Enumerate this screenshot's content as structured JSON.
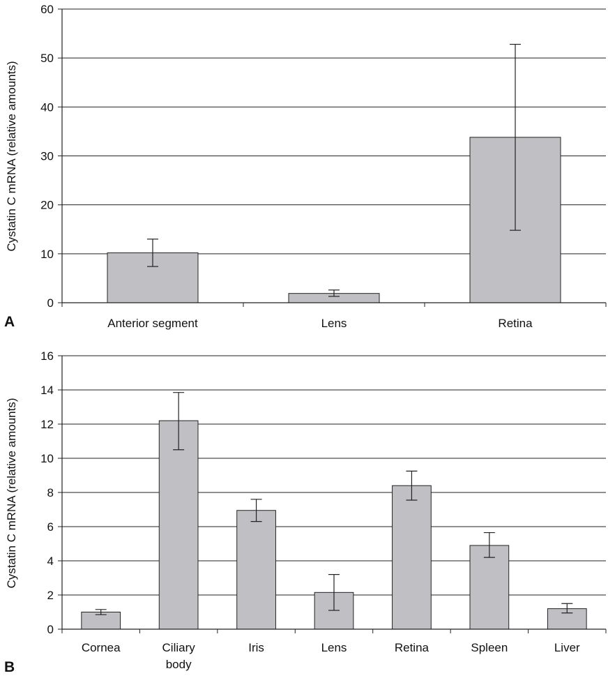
{
  "chart_data": [
    {
      "panel": "A",
      "type": "bar",
      "ylabel": "Cystatin C mRNA (relative amounts)",
      "ylim": [
        0,
        60
      ],
      "yticks": [
        0,
        10,
        20,
        30,
        40,
        50,
        60
      ],
      "grid": true,
      "categories": [
        "Anterior segment",
        "Lens",
        "Retina"
      ],
      "series": [
        {
          "values": [
            10.2,
            1.9,
            33.8
          ],
          "error_low": [
            7.4,
            1.3,
            14.8
          ],
          "error_high": [
            13.0,
            2.6,
            52.8
          ]
        }
      ],
      "colors": {
        "bar": "#c0c0c4",
        "edge": "#222222",
        "grid": "#222222"
      }
    },
    {
      "panel": "B",
      "type": "bar",
      "ylabel": "Cystatin C mRNA (relative amounts)",
      "ylim": [
        0,
        16
      ],
      "yticks": [
        0,
        2,
        4,
        6,
        8,
        10,
        12,
        14,
        16
      ],
      "grid": true,
      "categories": [
        "Cornea",
        "Ciliary body",
        "Iris",
        "Lens",
        "Retina",
        "Spleen",
        "Liver"
      ],
      "series": [
        {
          "values": [
            1.0,
            12.2,
            6.95,
            2.15,
            8.4,
            4.9,
            1.2
          ],
          "error_low": [
            0.85,
            10.5,
            6.3,
            1.1,
            7.55,
            4.2,
            0.95
          ],
          "error_high": [
            1.15,
            13.85,
            7.6,
            3.2,
            9.25,
            5.65,
            1.5
          ]
        }
      ],
      "colors": {
        "bar": "#c0c0c4",
        "edge": "#222222",
        "grid": "#222222"
      }
    }
  ]
}
